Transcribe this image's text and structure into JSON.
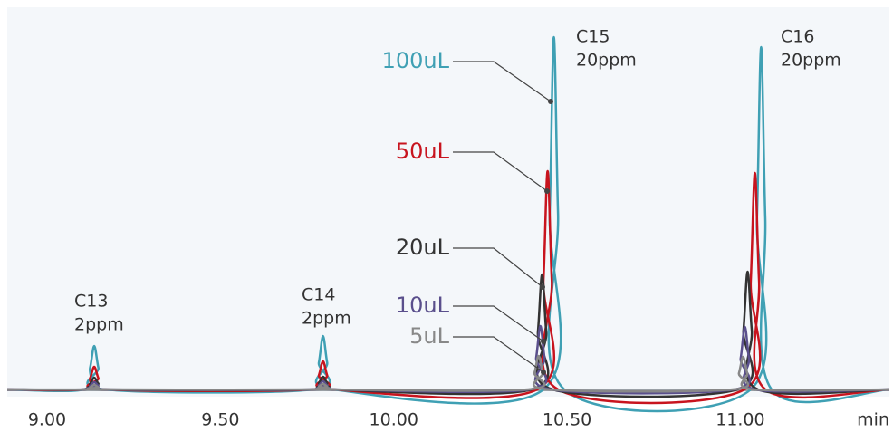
{
  "chart_data": {
    "type": "line",
    "x_label": "min",
    "xlim": [
      8.885,
      11.43
    ],
    "ylim": [
      0,
      100
    ],
    "xticks": [
      {
        "value": 9.0,
        "label": "9.00"
      },
      {
        "value": 9.5,
        "label": "9.50"
      },
      {
        "value": 10.0,
        "label": "10.00"
      },
      {
        "value": 10.5,
        "label": "10.50"
      },
      {
        "value": 11.0,
        "label": "11.00"
      }
    ],
    "annotations": [
      {
        "label": "C13",
        "note": "2ppm"
      },
      {
        "label": "C14",
        "note": "2ppm"
      },
      {
        "label": "C15",
        "note": "20ppm"
      },
      {
        "label": "C16",
        "note": "20ppm"
      }
    ],
    "series": [
      {
        "name": "100uL",
        "color": "#3fa0b4",
        "x": [
          8.885,
          9.106,
          9.124,
          9.136,
          9.148,
          9.166,
          9.766,
          9.784,
          9.796,
          9.808,
          9.826,
          10.432,
          10.45,
          10.462,
          10.474,
          10.492,
          11.03,
          11.048,
          11.06,
          11.072,
          11.09,
          11.43
        ],
        "values": [
          0,
          0,
          6,
          12,
          6,
          0,
          0,
          7.4,
          14.75,
          7.4,
          0,
          0,
          48.6,
          97.25,
          48.6,
          0,
          0,
          47.3,
          94.5,
          47.3,
          0,
          0
        ]
      },
      {
        "name": "50uL",
        "color": "#c8141e",
        "x": [
          8.885,
          9.106,
          9.124,
          9.136,
          9.148,
          9.166,
          9.766,
          9.784,
          9.796,
          9.808,
          9.826,
          10.414,
          10.432,
          10.444,
          10.456,
          10.474,
          11.012,
          11.03,
          11.042,
          11.054,
          11.072,
          11.43
        ],
        "values": [
          0,
          0,
          3.1,
          6.25,
          3.1,
          0,
          0,
          3.9,
          7.75,
          3.9,
          0,
          0,
          30.1,
          60.25,
          30.1,
          0,
          0,
          29.9,
          59.75,
          29.9,
          0,
          0
        ]
      },
      {
        "name": "20uL",
        "color": "#333333",
        "x": [
          8.885,
          9.106,
          9.124,
          9.136,
          9.148,
          9.166,
          9.766,
          9.784,
          9.796,
          9.808,
          9.826,
          10.398,
          10.416,
          10.428,
          10.44,
          10.458,
          10.991,
          11.009,
          11.021,
          11.033,
          11.051,
          11.43
        ],
        "values": [
          0,
          0,
          1.6,
          3.25,
          1.6,
          0,
          0,
          1.8,
          3.5,
          1.8,
          0,
          0,
          15.9,
          31.75,
          15.9,
          0,
          0,
          16.3,
          32.5,
          16.3,
          0,
          0
        ]
      },
      {
        "name": "10uL",
        "color": "#5a4f8c",
        "x": [
          8.885,
          9.106,
          9.124,
          9.136,
          9.148,
          9.166,
          9.766,
          9.784,
          9.796,
          9.808,
          9.826,
          10.393,
          10.411,
          10.423,
          10.435,
          10.453,
          10.983,
          11.001,
          11.013,
          11.025,
          11.043,
          11.43
        ],
        "values": [
          0,
          0,
          1,
          2,
          1,
          0,
          0,
          1.1,
          2.25,
          1.1,
          0,
          0,
          8.8,
          17.5,
          8.8,
          0,
          0,
          8.6,
          17.25,
          8.6,
          0,
          0
        ]
      },
      {
        "name": "5uL",
        "color": "#888888",
        "x": [
          8.885,
          9.106,
          9.124,
          9.136,
          9.148,
          9.166,
          9.766,
          9.784,
          9.796,
          9.808,
          9.826,
          10.388,
          10.406,
          10.418,
          10.43,
          10.448,
          10.978,
          10.996,
          11.008,
          11.02,
          11.038,
          11.43
        ],
        "values": [
          0,
          0,
          0.6,
          1.25,
          0.6,
          0,
          0,
          0.8,
          1.5,
          0.8,
          0,
          0,
          4.6,
          9.25,
          4.6,
          0,
          0,
          4.5,
          9,
          4.5,
          0,
          0
        ]
      }
    ]
  }
}
